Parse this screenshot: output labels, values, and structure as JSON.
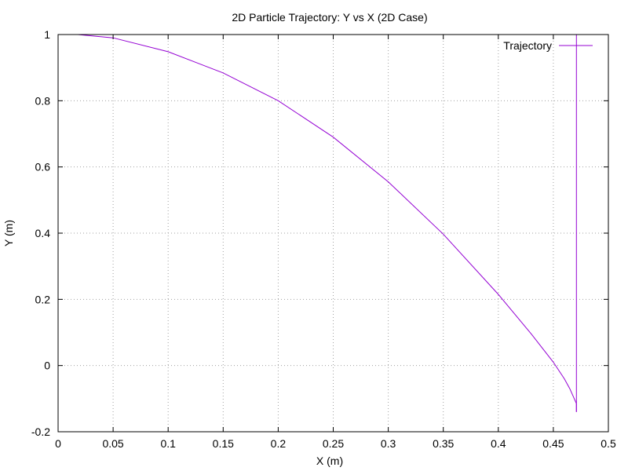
{
  "chart_data": {
    "type": "line",
    "title": "2D Particle Trajectory: Y vs X (2D Case)",
    "xlabel": "X (m)",
    "ylabel": "Y (m)",
    "xlim": [
      0,
      0.5
    ],
    "ylim": [
      -0.2,
      1
    ],
    "x_ticks": [
      0,
      0.05,
      0.1,
      0.15,
      0.2,
      0.25,
      0.3,
      0.35,
      0.4,
      0.45,
      0.5
    ],
    "x_tick_labels": [
      "0",
      "0.05",
      "0.1",
      "0.15",
      "0.2",
      "0.25",
      "0.3",
      "0.35",
      "0.4",
      "0.45",
      "0.5"
    ],
    "y_ticks": [
      -0.2,
      0,
      0.2,
      0.4,
      0.6,
      0.8,
      1
    ],
    "y_tick_labels": [
      "-0.2",
      "0",
      "0.2",
      "0.4",
      "0.6",
      "0.8",
      "1"
    ],
    "grid": true,
    "legend_position": "top-right",
    "series": [
      {
        "name": "Trajectory",
        "color": "#9400d3",
        "x": [
          0.018,
          0.05,
          0.1,
          0.15,
          0.2,
          0.25,
          0.3,
          0.35,
          0.4,
          0.43,
          0.45,
          0.46,
          0.465,
          0.469,
          0.471,
          0.471
        ],
        "y": [
          1.0,
          0.99,
          0.948,
          0.884,
          0.8,
          0.69,
          0.555,
          0.397,
          0.215,
          0.095,
          0.01,
          -0.04,
          -0.07,
          -0.1,
          -0.115,
          -0.14
        ]
      },
      {
        "name": "",
        "color": "#9400d3",
        "x": [
          0.471,
          0.471
        ],
        "y": [
          -0.14,
          1.0
        ]
      }
    ]
  }
}
